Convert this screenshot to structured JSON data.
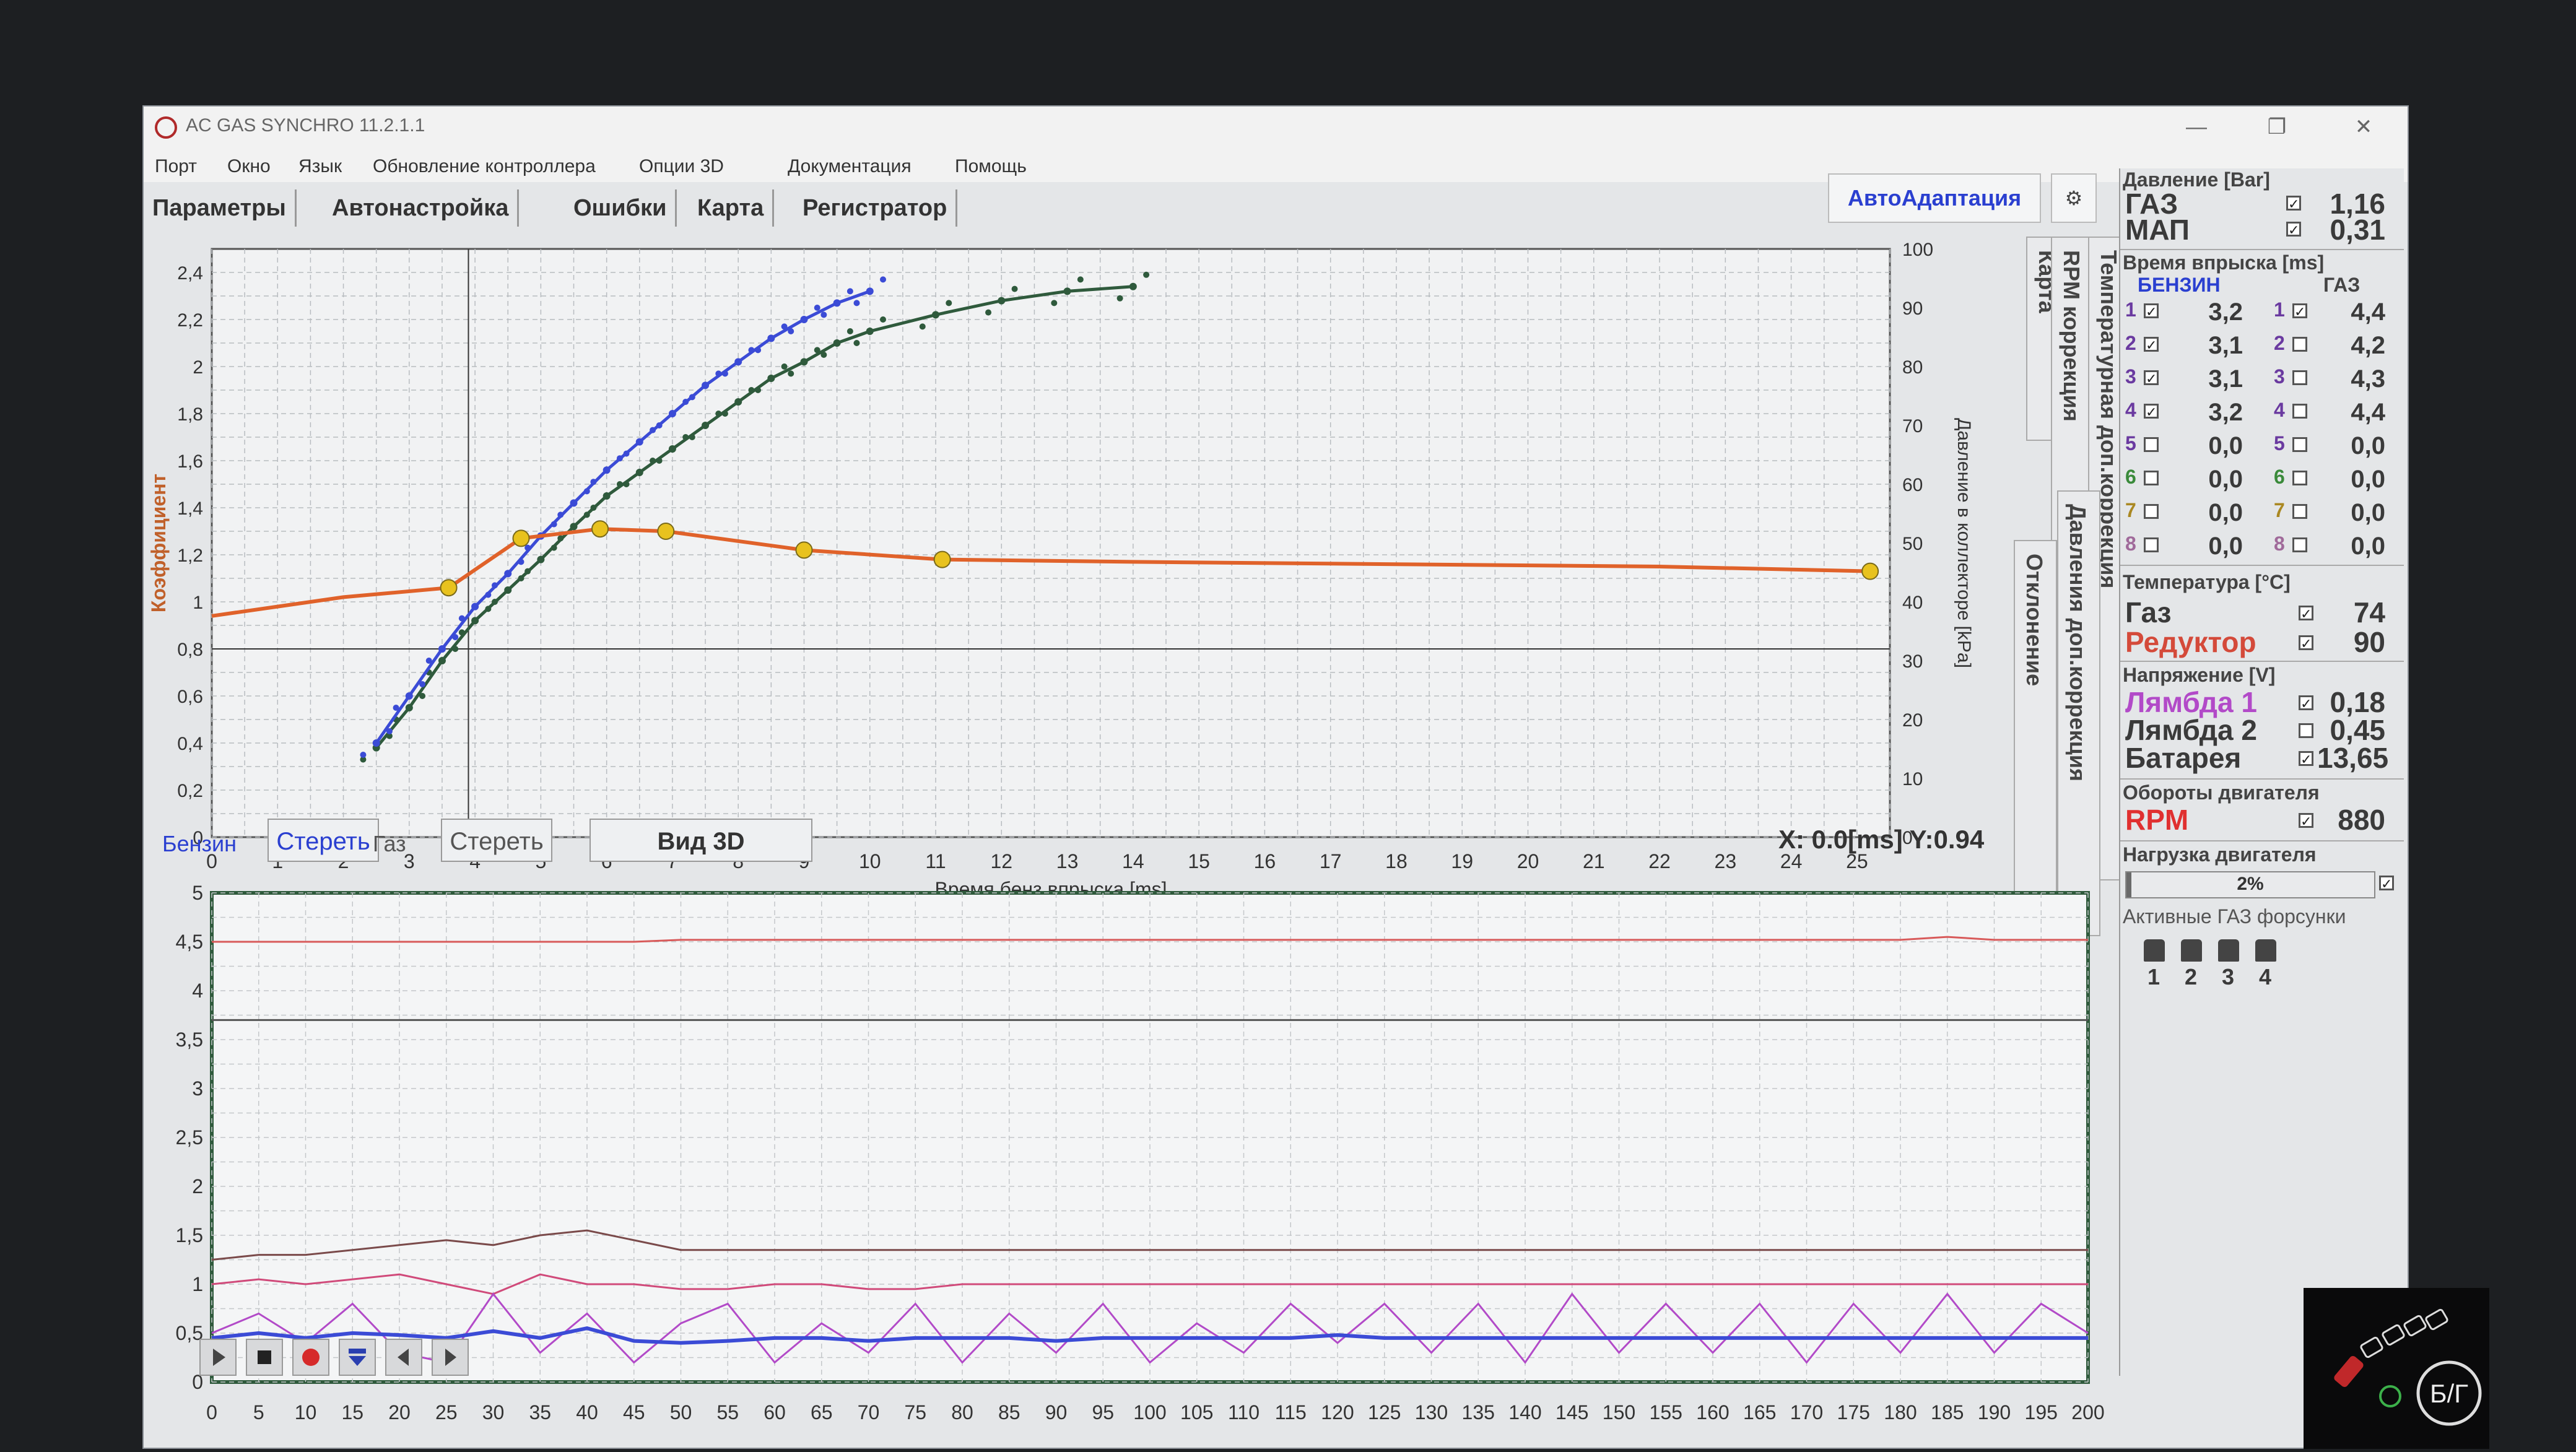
{
  "window": {
    "title": "AC GAS SYNCHRO  11.2.1.1",
    "controls": [
      "—",
      "❐",
      "✕"
    ]
  },
  "menu": [
    "Порт",
    "Окно",
    "Язык",
    "Обновление контроллера",
    "Опции 3D",
    "Документация",
    "Помощь"
  ],
  "tabs": [
    "Параметры",
    "Автонастройка",
    "Ошибки",
    "Карта",
    "Регистратор"
  ],
  "auto_adapt": "АвтоАдаптация",
  "side_tabs": [
    "Карта",
    "RPM коррекция",
    "Температурная доп.коррекция",
    "Давления доп.коррекция",
    "Отклонение"
  ],
  "right_panel": {
    "pressure": {
      "title": "Давление [Bar]",
      "rows": [
        {
          "label": "ГАЗ",
          "value": "1,16",
          "checked": true
        },
        {
          "label": "МАП",
          "value": "0,31",
          "checked": true
        }
      ]
    },
    "injection": {
      "title": "Время впрыска [ms]",
      "col_petrol": "БЕНЗИН",
      "col_gas": "ГАЗ",
      "rows": [
        {
          "n": "1",
          "petrol": "3,2",
          "gas": "4,4",
          "p_on": true,
          "g_on": true
        },
        {
          "n": "2",
          "petrol": "3,1",
          "gas": "4,2",
          "p_on": true,
          "g_on": false
        },
        {
          "n": "3",
          "petrol": "3,1",
          "gas": "4,3",
          "p_on": true,
          "g_on": false
        },
        {
          "n": "4",
          "petrol": "3,2",
          "gas": "4,4",
          "p_on": true,
          "g_on": false
        },
        {
          "n": "5",
          "petrol": "0,0",
          "gas": "0,0",
          "p_on": false,
          "g_on": false
        },
        {
          "n": "6",
          "petrol": "0,0",
          "gas": "0,0",
          "p_on": false,
          "g_on": false
        },
        {
          "n": "7",
          "petrol": "0,0",
          "gas": "0,0",
          "p_on": false,
          "g_on": false
        },
        {
          "n": "8",
          "petrol": "0,0",
          "gas": "0,0",
          "p_on": false,
          "g_on": false
        }
      ]
    },
    "temperature": {
      "title": "Температура [°C]",
      "rows": [
        {
          "label": "Газ",
          "value": "74",
          "color": "#3a3a3a"
        },
        {
          "label": "Редуктор",
          "value": "90",
          "color": "#d44a3a"
        }
      ]
    },
    "voltage": {
      "title": "Напряжение [V]",
      "rows": [
        {
          "label": "Лямбда 1",
          "value": "0,18",
          "color": "#b24ac8",
          "checked": true
        },
        {
          "label": "Лямбда 2",
          "value": "0,45",
          "color": "#3a3a3a",
          "checked": false
        },
        {
          "label": "Батарея",
          "value": "13,65",
          "color": "#3a3a3a",
          "checked": true
        }
      ]
    },
    "rpm": {
      "title": "Обороты двигателя",
      "label": "RPM",
      "value": "880",
      "color": "#e03030"
    },
    "load": {
      "title": "Нагрузка двигателя",
      "value": "2%"
    },
    "active_injectors": {
      "title": "Активные ГАЗ форсунки",
      "numbers": [
        "1",
        "2",
        "3",
        "4"
      ]
    }
  },
  "map_chart_controls": {
    "petrol_label": "Бензин",
    "petrol_clear": "Стереть",
    "gas_label": "Газ",
    "gas_clear": "Стереть",
    "view3d": "Вид 3D",
    "coords": "X:  0.0[ms] Y:0.94"
  },
  "colors": {
    "petrol_series": "#3b4bd6",
    "gas_series": "#2f5a3c",
    "coef_curve": "#e0622a",
    "coef_point": "#e8c21e"
  },
  "chart_data": [
    {
      "type": "scatter",
      "xlabel": "Время бенз.впрыска [ms]",
      "ylabel": "Коэффициент",
      "y2label": "Давление в коллекторе [kPa]",
      "xlim": [
        0,
        25.5
      ],
      "ylim": [
        0,
        2.5
      ],
      "y2lim": [
        0,
        100
      ],
      "x_ticks": [
        0,
        1,
        2,
        3,
        4,
        5,
        6,
        7,
        8,
        9,
        10,
        11,
        12,
        13,
        14,
        15,
        16,
        17,
        18,
        19,
        20,
        21,
        22,
        23,
        24,
        25
      ],
      "y_ticks": [
        "0",
        "0,2",
        "0,4",
        "0,6",
        "0,8",
        "1",
        "1,2",
        "1,4",
        "1,6",
        "1,8",
        "2",
        "2,2",
        "2,4"
      ],
      "y2_ticks": [
        "0",
        "10",
        "20",
        "30",
        "40",
        "50",
        "60",
        "70",
        "80",
        "90",
        "100"
      ],
      "series": [
        {
          "points": [
            [
              2.5,
              0.38
            ],
            [
              3.0,
              0.55
            ],
            [
              3.5,
              0.75
            ],
            [
              4.0,
              0.92
            ],
            [
              4.5,
              1.05
            ],
            [
              5.0,
              1.18
            ],
            [
              5.5,
              1.32
            ],
            [
              6.0,
              1.45
            ],
            [
              6.5,
              1.55
            ],
            [
              7.0,
              1.65
            ],
            [
              7.5,
              1.75
            ],
            [
              8.0,
              1.85
            ],
            [
              8.5,
              1.95
            ],
            [
              9.0,
              2.02
            ],
            [
              9.5,
              2.1
            ],
            [
              10.0,
              2.15
            ],
            [
              11.0,
              2.22
            ],
            [
              12.0,
              2.28
            ],
            [
              13.0,
              2.32
            ],
            [
              14.0,
              2.34
            ]
          ]
        },
        {
          "points": [
            [
              2.5,
              0.4
            ],
            [
              3.0,
              0.6
            ],
            [
              3.5,
              0.8
            ],
            [
              4.0,
              0.98
            ],
            [
              4.5,
              1.12
            ],
            [
              5.0,
              1.28
            ],
            [
              5.5,
              1.42
            ],
            [
              6.0,
              1.56
            ],
            [
              6.5,
              1.68
            ],
            [
              7.0,
              1.8
            ],
            [
              7.5,
              1.92
            ],
            [
              8.0,
              2.02
            ],
            [
              8.5,
              2.12
            ],
            [
              9.0,
              2.2
            ],
            [
              9.5,
              2.27
            ],
            [
              10.0,
              2.32
            ]
          ]
        },
        {
          "points": [
            [
              0,
              0.94
            ],
            [
              1,
              0.98
            ],
            [
              2,
              1.02
            ],
            [
              3.6,
              1.06
            ],
            [
              4.7,
              1.27
            ],
            [
              5.9,
              1.31
            ],
            [
              6.9,
              1.3
            ],
            [
              9.0,
              1.22
            ],
            [
              11.1,
              1.18
            ],
            [
              14,
              1.17
            ],
            [
              18,
              1.16
            ],
            [
              22,
              1.15
            ],
            [
              25.2,
              1.13
            ]
          ],
          "markers": [
            [
              3.6,
              1.06
            ],
            [
              4.7,
              1.27
            ],
            [
              5.9,
              1.31
            ],
            [
              6.9,
              1.3
            ],
            [
              9.0,
              1.22
            ],
            [
              11.1,
              1.18
            ],
            [
              25.2,
              1.13
            ]
          ]
        }
      ]
    },
    {
      "type": "line",
      "xlim": [
        0,
        200
      ],
      "ylim": [
        0,
        5
      ],
      "x_ticks": [
        0,
        5,
        10,
        15,
        20,
        25,
        30,
        35,
        40,
        45,
        50,
        55,
        60,
        65,
        70,
        75,
        80,
        85,
        90,
        95,
        100,
        105,
        110,
        115,
        120,
        125,
        130,
        135,
        140,
        145,
        150,
        155,
        160,
        165,
        170,
        175,
        180,
        185,
        190,
        195,
        200
      ],
      "y_ticks": [
        "0",
        "0,5",
        "1",
        "1,5",
        "2",
        "2,5",
        "3",
        "3,5",
        "4",
        "4,5",
        "5"
      ],
      "series": [
        {
          "color": "#d85a5a",
          "values": [
            4.5,
            4.5,
            4.5,
            4.5,
            4.5,
            4.5,
            4.5,
            4.5,
            4.5,
            4.5,
            4.52,
            4.52,
            4.52,
            4.52,
            4.52,
            4.52,
            4.52,
            4.52,
            4.52,
            4.52,
            4.52,
            4.52,
            4.52,
            4.52,
            4.52,
            4.52,
            4.52,
            4.52,
            4.52,
            4.52,
            4.52,
            4.52,
            4.52,
            4.52,
            4.52,
            4.52,
            4.52,
            4.55,
            4.52,
            4.52,
            4.52
          ]
        },
        {
          "color": "#555555",
          "values": [
            3.7,
            3.7,
            3.7,
            3.7,
            3.7,
            3.7,
            3.7,
            3.7,
            3.7,
            3.7,
            3.7,
            3.7,
            3.7,
            3.7,
            3.7,
            3.7,
            3.7,
            3.7,
            3.7,
            3.7,
            3.7,
            3.7,
            3.7,
            3.7,
            3.7,
            3.7,
            3.7,
            3.7,
            3.7,
            3.7,
            3.7,
            3.7,
            3.7,
            3.7,
            3.7,
            3.7,
            3.7,
            3.7,
            3.7,
            3.7,
            3.7
          ]
        },
        {
          "color": "#7a4a4a",
          "values": [
            1.25,
            1.3,
            1.3,
            1.35,
            1.4,
            1.45,
            1.4,
            1.5,
            1.55,
            1.45,
            1.35,
            1.35,
            1.35,
            1.35,
            1.35,
            1.35,
            1.35,
            1.35,
            1.35,
            1.35,
            1.35,
            1.35,
            1.35,
            1.35,
            1.35,
            1.35,
            1.35,
            1.35,
            1.35,
            1.35,
            1.35,
            1.35,
            1.35,
            1.35,
            1.35,
            1.35,
            1.35,
            1.35,
            1.35,
            1.35,
            1.35
          ]
        },
        {
          "color": "#d04a7a",
          "values": [
            1.0,
            1.05,
            1.0,
            1.05,
            1.1,
            1.0,
            0.9,
            1.1,
            1.0,
            1.0,
            0.95,
            0.95,
            1.0,
            1.0,
            0.95,
            0.95,
            1.0,
            1.0,
            1.0,
            1.0,
            1.0,
            1.0,
            1.0,
            1.0,
            1.0,
            1.0,
            1.0,
            1.0,
            1.0,
            1.0,
            1.0,
            1.0,
            1.0,
            1.0,
            1.0,
            1.0,
            1.0,
            1.0,
            1.0,
            1.0,
            1.0
          ]
        },
        {
          "color": "#b24ac8",
          "values": [
            0.5,
            0.7,
            0.4,
            0.8,
            0.3,
            0.2,
            0.9,
            0.3,
            0.7,
            0.2,
            0.6,
            0.8,
            0.2,
            0.6,
            0.3,
            0.8,
            0.2,
            0.7,
            0.3,
            0.8,
            0.2,
            0.6,
            0.3,
            0.8,
            0.4,
            0.8,
            0.3,
            0.8,
            0.2,
            0.9,
            0.3,
            0.8,
            0.3,
            0.8,
            0.2,
            0.8,
            0.3,
            0.9,
            0.3,
            0.8,
            0.5
          ]
        },
        {
          "color": "#3b4bd6",
          "values": [
            0.45,
            0.5,
            0.45,
            0.5,
            0.48,
            0.45,
            0.52,
            0.45,
            0.55,
            0.42,
            0.4,
            0.42,
            0.45,
            0.45,
            0.42,
            0.45,
            0.45,
            0.45,
            0.42,
            0.45,
            0.45,
            0.45,
            0.45,
            0.45,
            0.48,
            0.45,
            0.45,
            0.45,
            0.45,
            0.45,
            0.45,
            0.45,
            0.45,
            0.45,
            0.45,
            0.45,
            0.45,
            0.45,
            0.45,
            0.45,
            0.45
          ]
        }
      ]
    }
  ]
}
